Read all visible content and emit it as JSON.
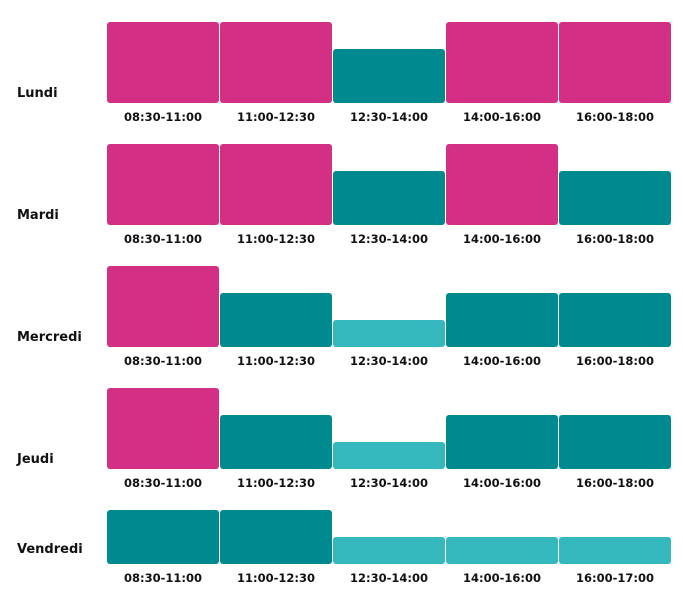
{
  "chart_data": {
    "type": "bar",
    "title": "",
    "xlabel": "",
    "ylabel": "",
    "levels": [
      "low",
      "medium",
      "high"
    ],
    "colors": {
      "high": "#d33085",
      "medium": "#008a8f",
      "low": "#35b8bd"
    },
    "rows": [
      {
        "day": "Lundi",
        "slots": [
          "08:30-11:00",
          "11:00-12:30",
          "12:30-14:00",
          "14:00-16:00",
          "16:00-18:00"
        ],
        "levels": [
          "high",
          "high",
          "medium",
          "high",
          "high"
        ]
      },
      {
        "day": "Mardi",
        "slots": [
          "08:30-11:00",
          "11:00-12:30",
          "12:30-14:00",
          "14:00-16:00",
          "16:00-18:00"
        ],
        "levels": [
          "high",
          "high",
          "medium",
          "high",
          "medium"
        ]
      },
      {
        "day": "Mercredi",
        "slots": [
          "08:30-11:00",
          "11:00-12:30",
          "12:30-14:00",
          "14:00-16:00",
          "16:00-18:00"
        ],
        "levels": [
          "high",
          "medium",
          "low",
          "medium",
          "medium"
        ]
      },
      {
        "day": "Jeudi",
        "slots": [
          "08:30-11:00",
          "11:00-12:30",
          "12:30-14:00",
          "14:00-16:00",
          "16:00-18:00"
        ],
        "levels": [
          "high",
          "medium",
          "low",
          "medium",
          "medium"
        ]
      },
      {
        "day": "Vendredi",
        "slots": [
          "08:30-11:00",
          "11:00-12:30",
          "12:30-14:00",
          "14:00-16:00",
          "16:00-17:00"
        ],
        "levels": [
          "medium",
          "medium",
          "low",
          "low",
          "low"
        ]
      }
    ]
  }
}
